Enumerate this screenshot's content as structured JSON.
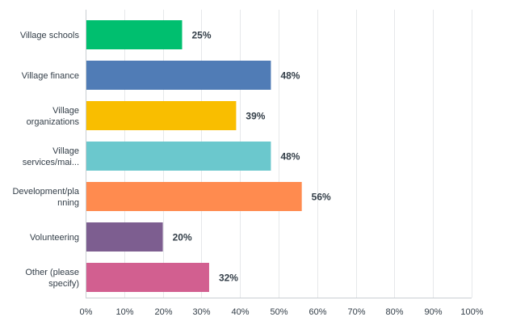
{
  "chart_data": {
    "type": "bar",
    "orientation": "horizontal",
    "categories": [
      [
        "Village schools"
      ],
      [
        "Village finance"
      ],
      [
        "Village",
        "organizations"
      ],
      [
        "Village",
        "services/mai..."
      ],
      [
        "Development/pla",
        "nning"
      ],
      [
        "Volunteering"
      ],
      [
        "Other (please",
        "specify)"
      ]
    ],
    "values": [
      25,
      48,
      39,
      48,
      56,
      20,
      32
    ],
    "value_labels": [
      "25%",
      "48%",
      "39%",
      "48%",
      "56%",
      "20%",
      "32%"
    ],
    "colors": [
      "#00bf6f",
      "#507cb6",
      "#f9be00",
      "#6bc8cd",
      "#ff8b4f",
      "#7d5e90",
      "#d25f90"
    ],
    "xlim": [
      0,
      100
    ],
    "x_ticks": [
      "0%",
      "10%",
      "20%",
      "30%",
      "40%",
      "50%",
      "60%",
      "70%",
      "80%",
      "90%",
      "100%"
    ],
    "grid": true,
    "title": "",
    "xlabel": "",
    "ylabel": ""
  }
}
